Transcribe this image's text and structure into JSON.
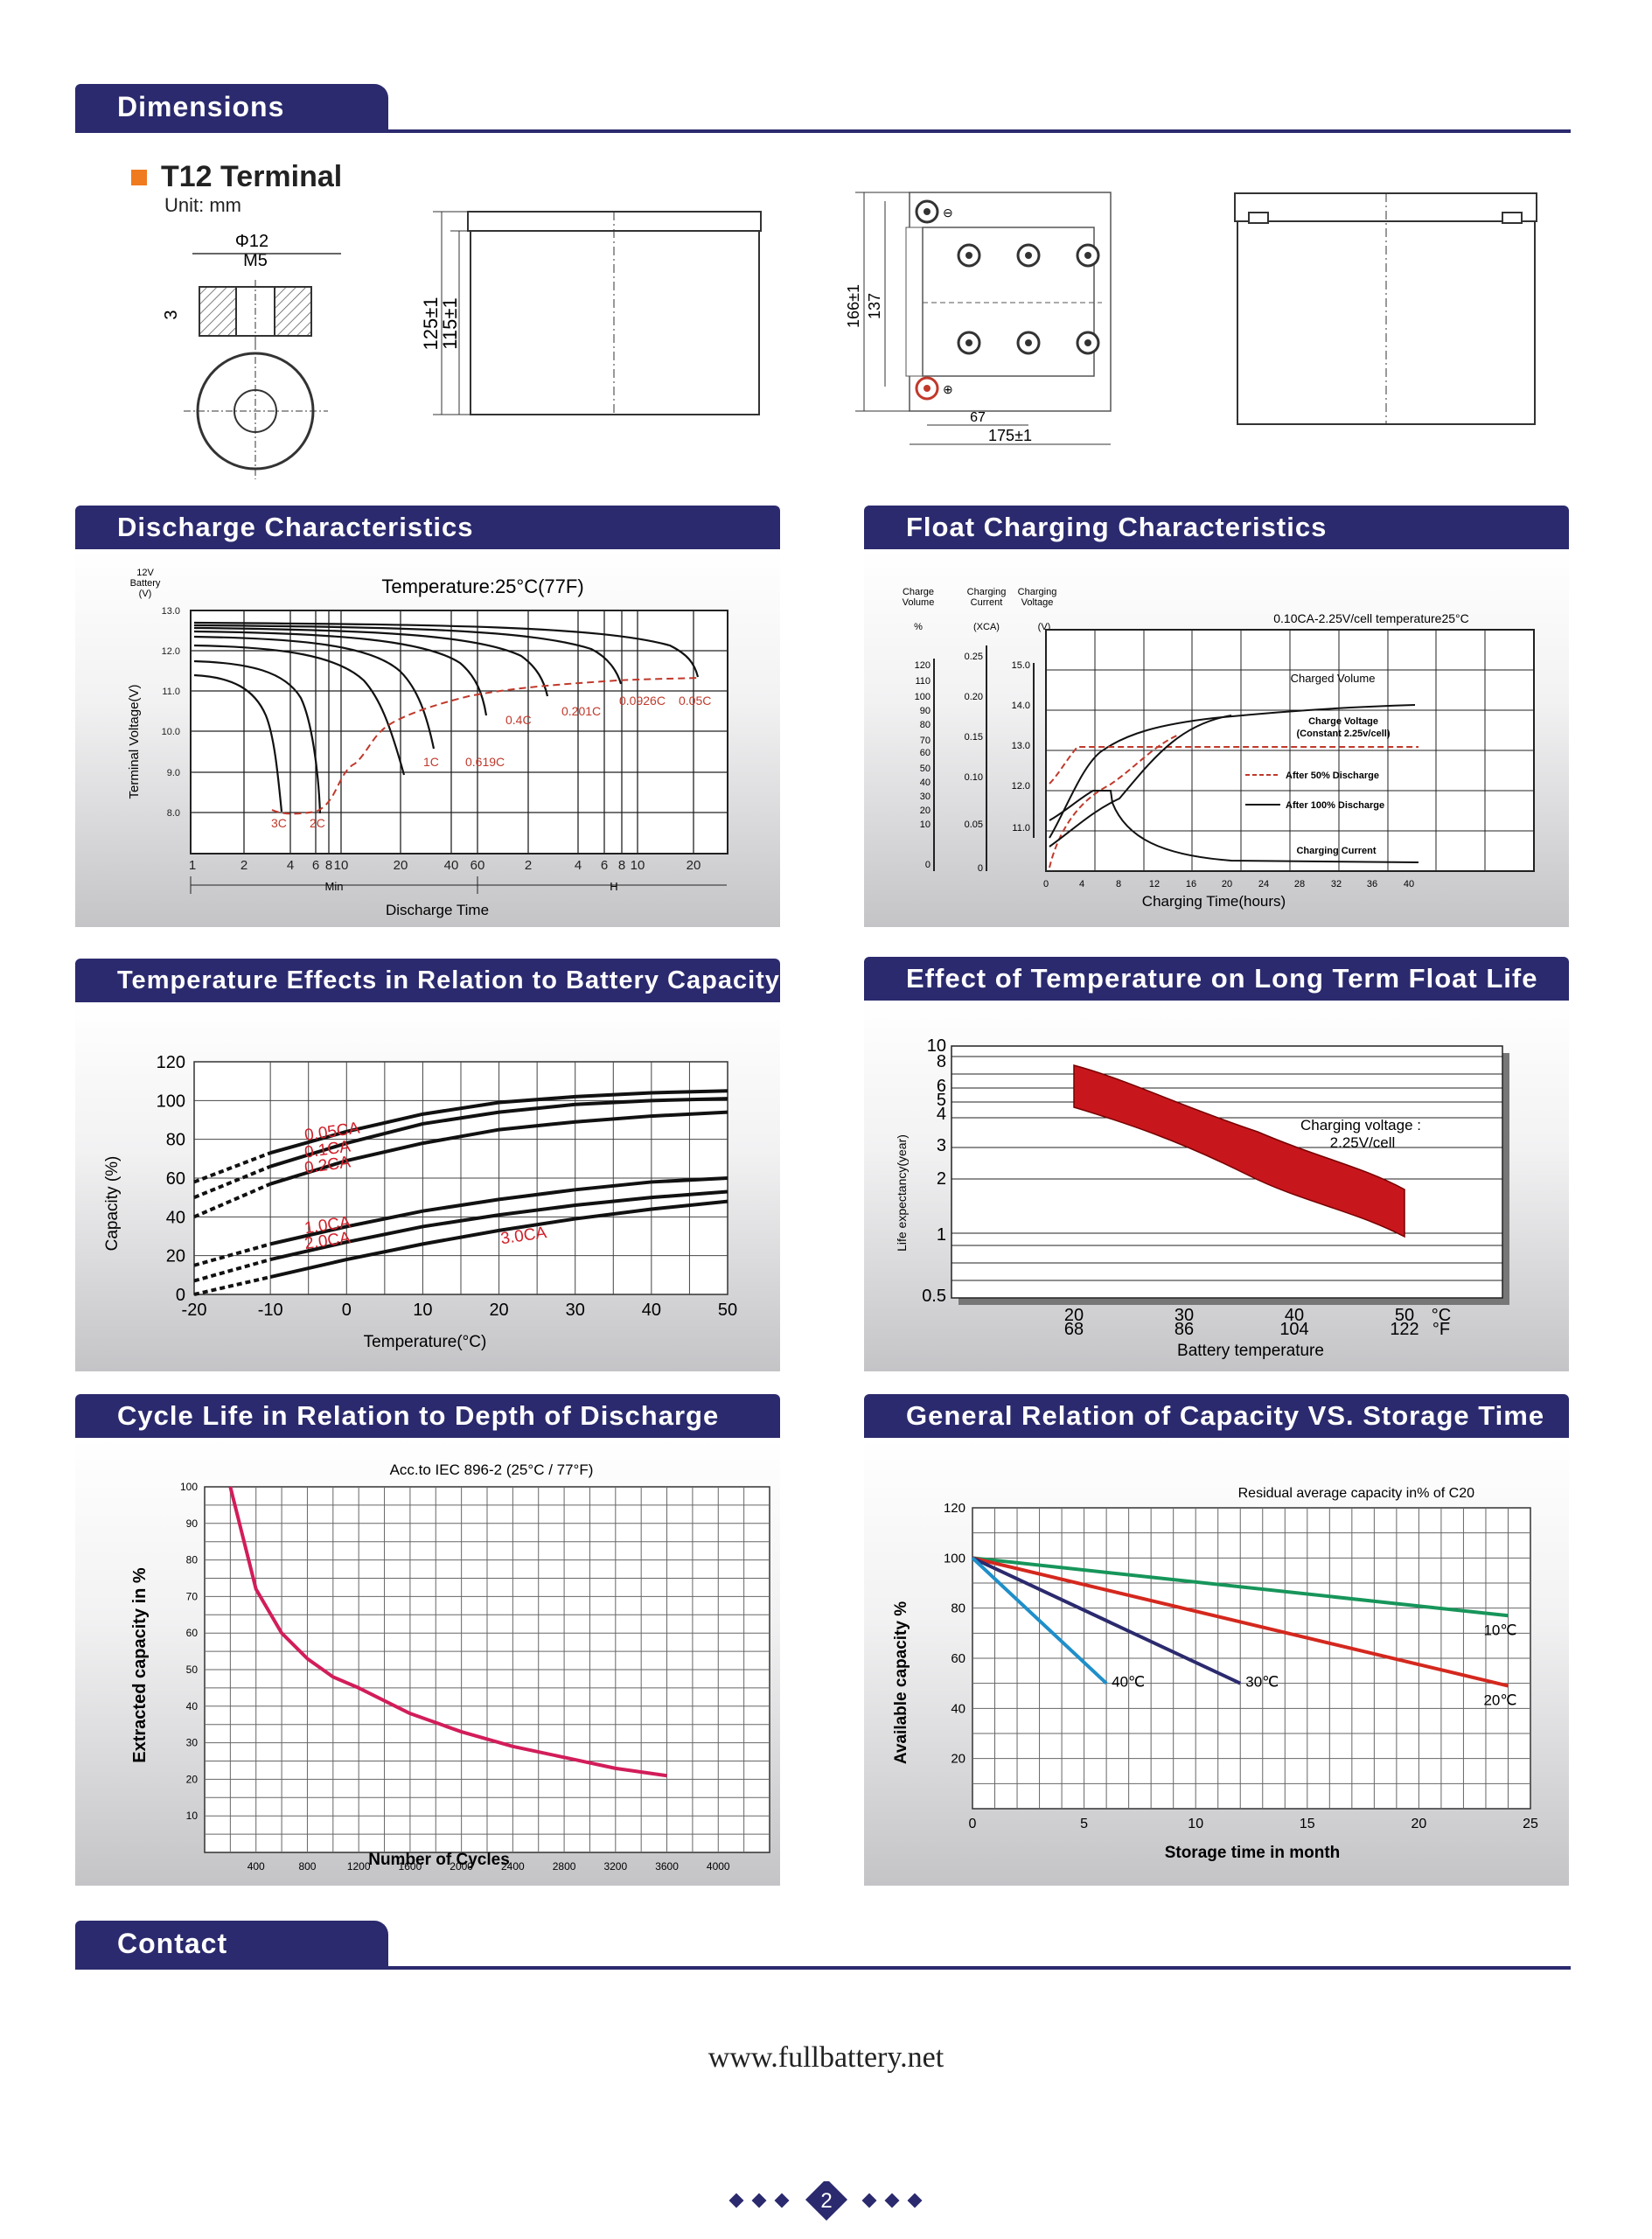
{
  "sections": {
    "dimensions": "Dimensions",
    "contact": "Contact"
  },
  "terminal": {
    "title": "T12 Terminal",
    "unit": "Unit: mm",
    "dia": "Φ12",
    "thread": "M5",
    "height_mark": "3"
  },
  "dims": {
    "h_total": "125±1",
    "h_body": "115±1",
    "h_top_total": "166±1",
    "h_top_inner": "137",
    "w_small": "67",
    "w_total": "175±1",
    "neg": "⊖",
    "pos": "⊕"
  },
  "panels": {
    "discharge": {
      "title": "Discharge Characteristics",
      "temp": "Temperature:25°C(77F)",
      "ylabel": "Terminal Voltage(V)",
      "unit_hdr": [
        "12V",
        "Battery",
        "(V)"
      ],
      "xlabel": "Discharge Time",
      "min": "Min",
      "h": "H",
      "labels": [
        "3C",
        "2C",
        "1C",
        "0.619C",
        "0.4C",
        "0.201C",
        "0.0926C",
        "0.05C"
      ]
    },
    "float": {
      "title": "Float Charging Characteristics",
      "hdr1": [
        "Charge",
        "Volume",
        "%"
      ],
      "hdr2": [
        "Charging",
        "Current",
        "(XCA)"
      ],
      "hdr3": [
        "Charging",
        "Voltage",
        "(V)"
      ],
      "condition": "0.10CA-2.25V/cell   temperature25°C",
      "charged_volume": "Charged Volume",
      "charge_voltage": "Charge Voltage",
      "charge_voltage_sub": "(Constant 2.25v/cell)",
      "legend_50": "After 50% Discharge",
      "legend_100": "After 100% Discharge",
      "charging_current": "Charging Current",
      "xlabel": "Charging Time(hours)"
    },
    "temp_capacity": {
      "title": "Temperature Effects in Relation to Battery Capacity",
      "ylabel": "Capacity (%)",
      "xlabel": "Temperature(°C)"
    },
    "float_life": {
      "title": "Effect of Temperature on Long Term Float Life",
      "ylabel": "Life expectancy(year)",
      "xlabel": "Battery temperature",
      "note": [
        "Charging voltage :",
        "2.25V/cell"
      ],
      "unit_c": "°C",
      "unit_f": "°F"
    },
    "cycle_life": {
      "title": "Cycle Life in Relation to Depth of Discharge",
      "note": "Acc.to IEC 896-2 (25°C / 77°F)",
      "ylabel": "Extracted capacity in %",
      "xlabel": "Number of Cycles"
    },
    "storage": {
      "title": "General Relation of Capacity VS. Storage Time",
      "note": "Residual average capacity in% of C20",
      "ylabel": "Available capacity %",
      "xlabel": "Storage time in month"
    }
  },
  "footer": {
    "website": "www.fullbattery.net",
    "page": "2"
  },
  "chart_data": [
    {
      "type": "line",
      "title": "Discharge Characteristics",
      "xlabel": "Discharge Time",
      "ylabel": "Terminal Voltage(V)",
      "x_ticks": [
        "1",
        "2",
        "4",
        "6",
        "8",
        "10",
        "20",
        "40",
        "60",
        "2",
        "4",
        "6",
        "8",
        "10",
        "20"
      ],
      "ylim": [
        7.5,
        13.0
      ],
      "y_ticks": [
        8.0,
        9.0,
        10.0,
        11.0,
        12.0,
        13.0
      ],
      "series": [
        {
          "name": "3C",
          "end_voltage": 7.8
        },
        {
          "name": "2C",
          "end_voltage": 7.8
        },
        {
          "name": "1C",
          "end_voltage": 9.0
        },
        {
          "name": "0.619C",
          "end_voltage": 9.4
        },
        {
          "name": "0.4C",
          "end_voltage": 10.1
        },
        {
          "name": "0.201C",
          "end_voltage": 10.4
        },
        {
          "name": "0.0926C",
          "end_voltage": 10.6
        },
        {
          "name": "0.05C",
          "end_voltage": 10.8
        }
      ]
    },
    {
      "type": "line",
      "title": "Float Charging Characteristics",
      "xlabel": "Charging Time(hours)",
      "x": [
        0,
        4,
        8,
        12,
        16,
        20,
        24,
        28,
        32,
        36,
        40
      ],
      "left_axes": {
        "volume_pct": [
          0,
          10,
          20,
          30,
          40,
          50,
          60,
          70,
          80,
          90,
          100,
          110,
          120
        ],
        "current_xca": [
          0,
          0.05,
          0.1,
          0.15,
          0.2,
          0.25
        ],
        "voltage_v": [
          11.0,
          12.0,
          13.0,
          14.0,
          15.0
        ]
      },
      "series": [
        {
          "name": "Charged Volume"
        },
        {
          "name": "Charge Voltage"
        },
        {
          "name": "Charging Current"
        }
      ]
    },
    {
      "type": "line",
      "title": "Temperature Effects in Relation to Battery Capacity",
      "xlabel": "Temperature(°C)",
      "ylabel": "Capacity (%)",
      "x": [
        -20,
        -10,
        0,
        10,
        20,
        30,
        40,
        50
      ],
      "ylim": [
        0,
        120
      ],
      "series": [
        {
          "name": "0.05CA",
          "values": [
            58,
            73,
            84,
            93,
            99,
            102,
            104,
            105
          ]
        },
        {
          "name": "0.1CA",
          "values": [
            50,
            66,
            78,
            88,
            94,
            98,
            100,
            101
          ]
        },
        {
          "name": "0.2CA",
          "values": [
            40,
            57,
            69,
            78,
            85,
            89,
            92,
            94
          ]
        },
        {
          "name": "1.0CA",
          "values": [
            15,
            26,
            35,
            43,
            49,
            54,
            58,
            60
          ]
        },
        {
          "name": "2.0CA",
          "values": [
            7,
            18,
            27,
            35,
            41,
            46,
            50,
            53
          ]
        },
        {
          "name": "3.0CA",
          "values": [
            0,
            9,
            18,
            26,
            33,
            39,
            44,
            48
          ]
        }
      ]
    },
    {
      "type": "area",
      "title": "Effect of Temperature on Long Term Float Life",
      "xlabel": "Battery temperature",
      "ylabel": "Life expectancy(year)",
      "x_c": [
        20,
        30,
        40,
        50
      ],
      "x_f": [
        68,
        86,
        104,
        122
      ],
      "y_ticks": [
        0.5,
        1,
        2,
        3,
        4,
        5,
        6,
        8,
        10
      ],
      "upper": [
        8,
        6,
        3.8,
        1.6
      ],
      "lower": [
        5,
        3.6,
        2.2,
        1.0
      ]
    },
    {
      "type": "line",
      "title": "Cycle Life in Relation to Depth of Discharge",
      "xlabel": "Number of Cycles",
      "ylabel": "Extracted capacity in %",
      "x": [
        200,
        400,
        600,
        800,
        1000,
        1200,
        1600,
        2000,
        2400,
        2800,
        3200,
        3600
      ],
      "ylim": [
        0,
        100
      ],
      "series": [
        {
          "name": "",
          "values": [
            100,
            72,
            60,
            53,
            48,
            45,
            38,
            33,
            29,
            26,
            23,
            21
          ]
        }
      ]
    },
    {
      "type": "line",
      "title": "General Relation of Capacity VS. Storage Time",
      "xlabel": "Storage time in month",
      "ylabel": "Available capacity %",
      "x_ticks": [
        0,
        5,
        10,
        15,
        20,
        25
      ],
      "ylim": [
        0,
        120
      ],
      "series": [
        {
          "name": "10℃",
          "x": [
            0,
            24
          ],
          "values": [
            100,
            77
          ]
        },
        {
          "name": "20℃",
          "x": [
            0,
            24
          ],
          "values": [
            100,
            49
          ]
        },
        {
          "name": "30℃",
          "x": [
            0,
            12
          ],
          "values": [
            100,
            50
          ]
        },
        {
          "name": "40℃",
          "x": [
            0,
            6
          ],
          "values": [
            100,
            50
          ]
        }
      ]
    }
  ]
}
